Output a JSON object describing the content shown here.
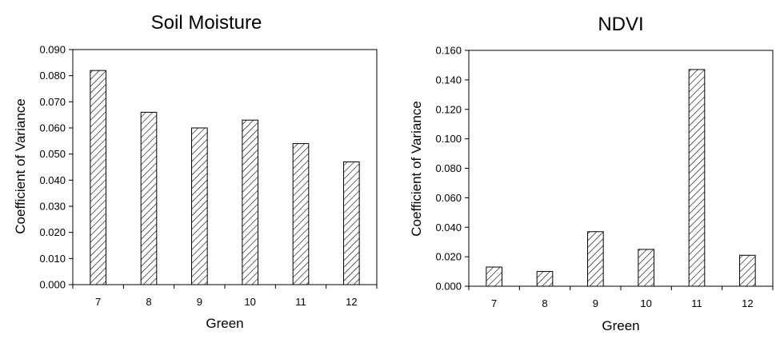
{
  "chart_data": [
    {
      "type": "bar",
      "title": "Soil Moisture",
      "xlabel": "Green",
      "ylabel": "Coefficient of Variance",
      "categories": [
        "7",
        "8",
        "9",
        "10",
        "11",
        "12"
      ],
      "values": [
        0.082,
        0.066,
        0.06,
        0.063,
        0.054,
        0.047
      ],
      "ylim": [
        0,
        0.09
      ],
      "yticks": [
        "0.000",
        "0.010",
        "0.020",
        "0.030",
        "0.040",
        "0.050",
        "0.060",
        "0.070",
        "0.080",
        "0.090"
      ],
      "grid": false,
      "legend": "none",
      "bar_fill": "hatched"
    },
    {
      "type": "bar",
      "title": "NDVI",
      "xlabel": "Green",
      "ylabel": "Coefficient of Variance",
      "categories": [
        "7",
        "8",
        "9",
        "10",
        "11",
        "12"
      ],
      "values": [
        0.013,
        0.01,
        0.037,
        0.025,
        0.147,
        0.021
      ],
      "ylim": [
        0,
        0.16
      ],
      "yticks": [
        "0.000",
        "0.020",
        "0.040",
        "0.060",
        "0.080",
        "0.100",
        "0.120",
        "0.140",
        "0.160"
      ],
      "grid": false,
      "legend": "none",
      "bar_fill": "hatched"
    }
  ]
}
